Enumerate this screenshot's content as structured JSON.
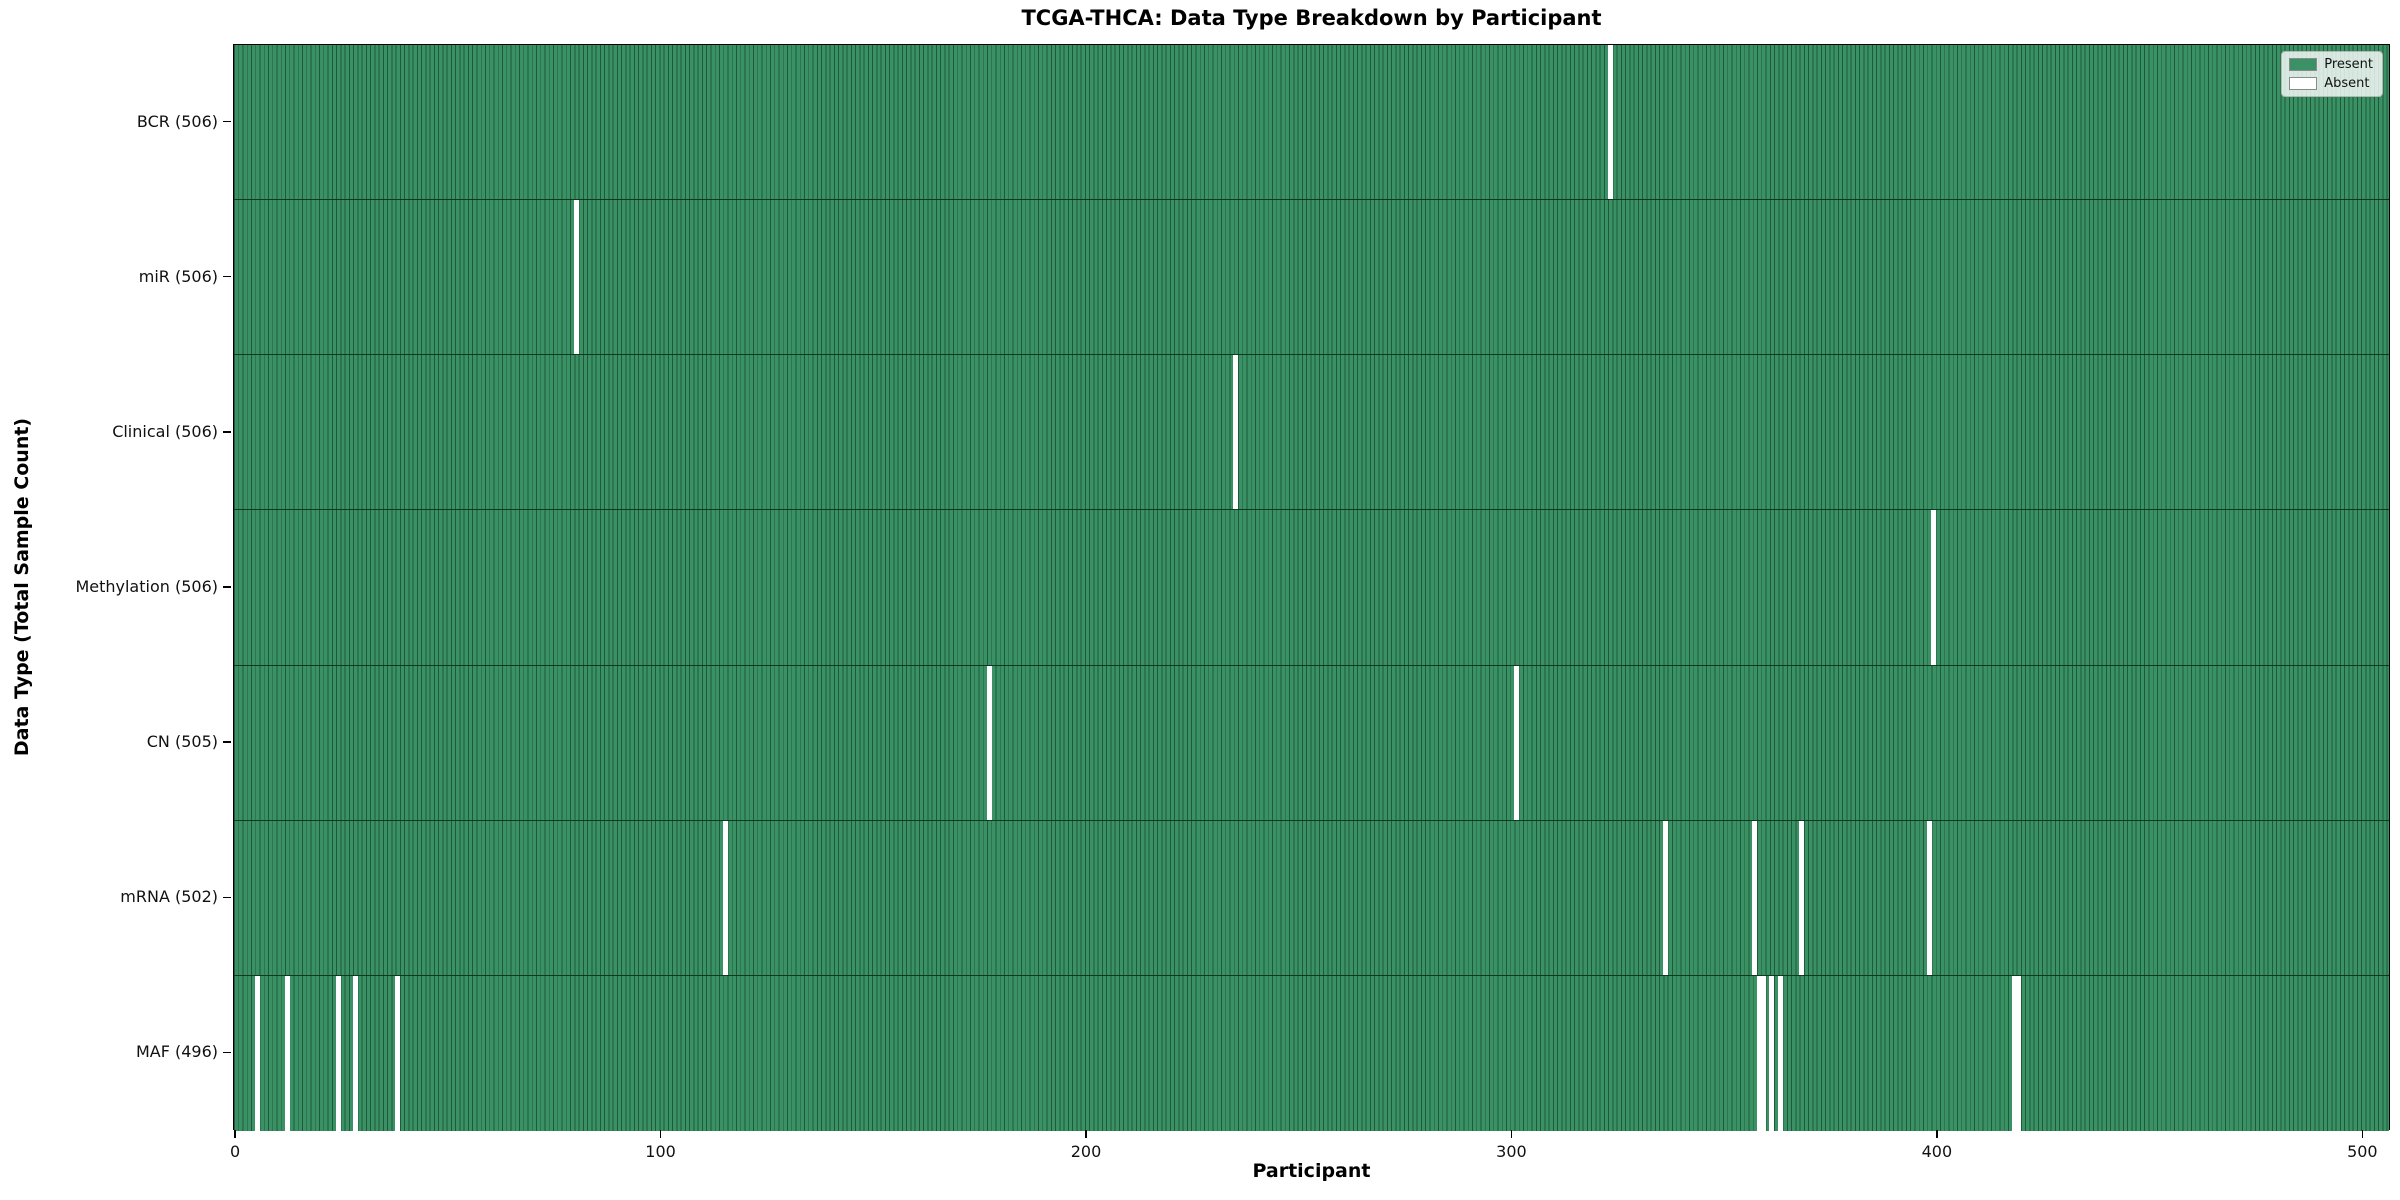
{
  "figure": {
    "title": "TCGA-THCA: Data Type Breakdown by Participant",
    "xlabel": "Participant",
    "ylabel": "Data Type (Total Sample Count)"
  },
  "legend": {
    "items": [
      {
        "label": "Present",
        "color": "#3a9166"
      },
      {
        "label": "Absent",
        "color": "#ffffff"
      }
    ]
  },
  "chart_data": {
    "type": "heatmap",
    "title": "TCGA-THCA: Data Type Breakdown by Participant",
    "xlabel": "Participant",
    "ylabel": "Data Type (Total Sample Count)",
    "legend": [
      "Present",
      "Absent"
    ],
    "legend_position": "upper right",
    "x_ticks": [
      0,
      100,
      200,
      300,
      400,
      500
    ],
    "x_range": [
      -0.5,
      506.5
    ],
    "n_participants": 507,
    "grid": false,
    "colors": {
      "present_fill": "#3a9166",
      "cell_edge": "#1e5a37",
      "absent_fill": "#ffffff"
    },
    "rows": [
      {
        "name": "BCR",
        "label": "BCR (506)",
        "total_sample_count": 506,
        "absent_participants": [
          323
        ]
      },
      {
        "name": "miR",
        "label": "miR (506)",
        "total_sample_count": 506,
        "absent_participants": [
          80
        ]
      },
      {
        "name": "Clinical",
        "label": "Clinical (506)",
        "total_sample_count": 506,
        "absent_participants": [
          235
        ]
      },
      {
        "name": "Methylation",
        "label": "Methylation (506)",
        "total_sample_count": 506,
        "absent_participants": [
          399
        ]
      },
      {
        "name": "CN",
        "label": "CN (505)",
        "total_sample_count": 505,
        "absent_participants": [
          177,
          301
        ]
      },
      {
        "name": "mRNA",
        "label": "mRNA (502)",
        "total_sample_count": 502,
        "absent_participants": [
          115,
          336,
          357,
          368,
          398
        ]
      },
      {
        "name": "MAF",
        "label": "MAF (496)",
        "total_sample_count": 496,
        "absent_participants": [
          5,
          12,
          24,
          28,
          38,
          358,
          359,
          361,
          363,
          418,
          419
        ]
      }
    ]
  }
}
